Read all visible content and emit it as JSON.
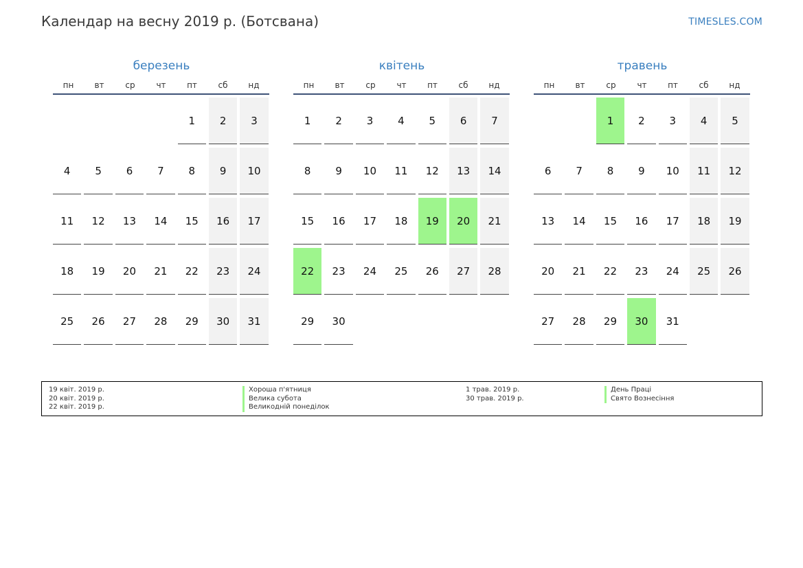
{
  "header": {
    "title": "Календар на весну 2019 р. (Ботсвана)",
    "site": "TIMESLES.COM"
  },
  "weekdays": [
    "пн",
    "вт",
    "ср",
    "чт",
    "пт",
    "сб",
    "нд"
  ],
  "colors": {
    "accent": "#3a7fbf",
    "holiday": "#9ef58d",
    "weekend": "#f2f2f2",
    "rule": "#3d5277"
  },
  "months": [
    {
      "name": "березень",
      "start_offset": 4,
      "days": 31,
      "holidays": []
    },
    {
      "name": "квітень",
      "start_offset": 0,
      "days": 30,
      "holidays": [
        19,
        20,
        22
      ]
    },
    {
      "name": "травень",
      "start_offset": 2,
      "days": 31,
      "holidays": [
        1,
        30
      ]
    }
  ],
  "legend": {
    "left": {
      "dates": [
        "19 квіт. 2019 р.",
        "20 квіт. 2019 р.",
        "22 квіт. 2019 р."
      ],
      "names": [
        "Хороша п'ятниця",
        "Велика субота",
        "Великодній понеділок"
      ]
    },
    "right": {
      "dates": [
        "1 трав. 2019 р.",
        "30 трав. 2019 р."
      ],
      "names": [
        "День Праці",
        "Свято Вознесіння"
      ]
    }
  }
}
